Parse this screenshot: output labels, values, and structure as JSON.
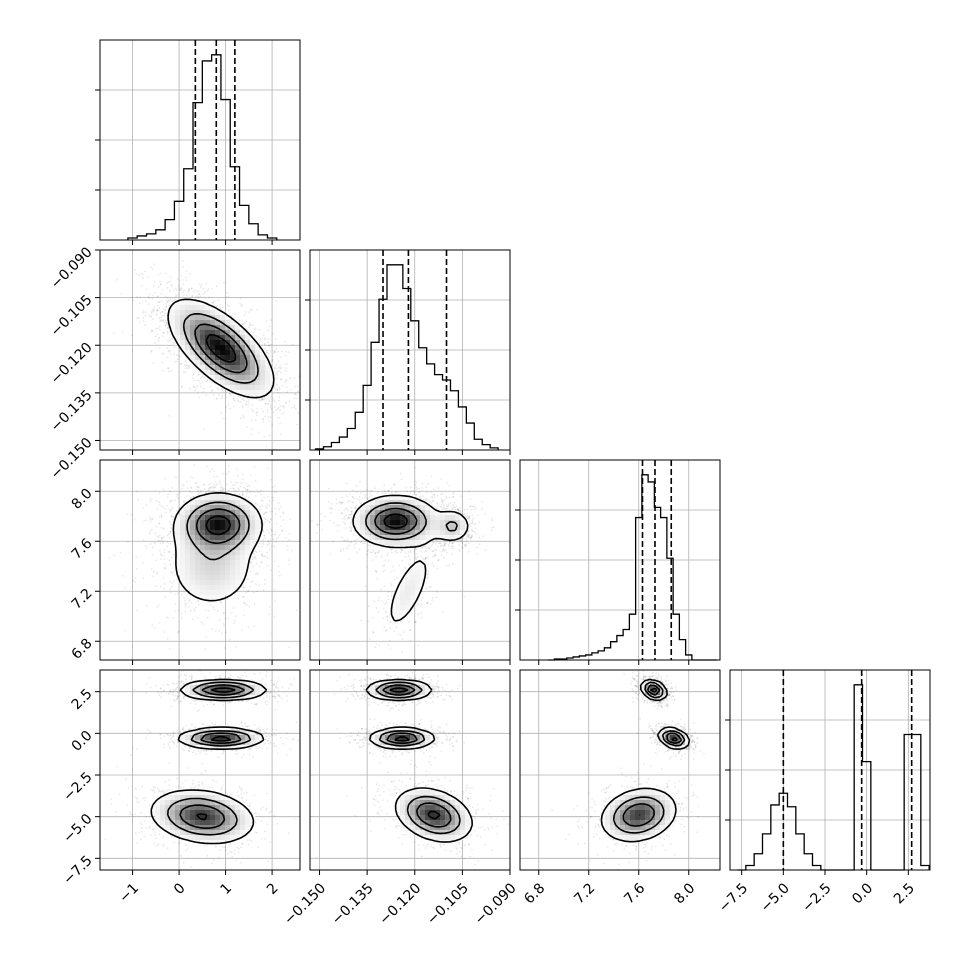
{
  "chart_data": {
    "type": "scatter",
    "title": "",
    "variables": [
      {
        "range": [
          -1.7,
          2.6
        ],
        "ticks": [
          -1,
          0,
          1,
          2
        ],
        "tick_labels": [
          "−1",
          "0",
          "1",
          "2"
        ],
        "hist_x": [
          -1.0,
          -0.8,
          -0.6,
          -0.4,
          -0.2,
          0.0,
          0.2,
          0.4,
          0.6,
          0.8,
          1.0,
          1.2,
          1.4,
          1.6,
          1.8,
          2.0
        ],
        "hist_y": [
          2,
          4,
          6,
          10,
          20,
          38,
          70,
          135,
          176,
          182,
          138,
          72,
          34,
          16,
          5,
          2
        ],
        "quantiles": [
          0.35,
          0.8,
          1.2
        ]
      },
      {
        "range": [
          -0.153,
          -0.09
        ],
        "ticks": [
          -0.15,
          -0.135,
          -0.12,
          -0.105,
          -0.09
        ],
        "tick_labels": [
          "−0.150",
          "−0.135",
          "−0.120",
          "−0.105",
          "−0.090"
        ],
        "hist_x": [
          -0.15,
          -0.1475,
          -0.145,
          -0.1425,
          -0.14,
          -0.1375,
          -0.135,
          -0.1325,
          -0.13,
          -0.1275,
          -0.125,
          -0.1225,
          -0.12,
          -0.1175,
          -0.115,
          -0.1125,
          -0.11,
          -0.1075,
          -0.105,
          -0.1025,
          -0.1,
          -0.0975,
          -0.095
        ],
        "hist_y": [
          1,
          3,
          7,
          12,
          20,
          35,
          60,
          100,
          140,
          172,
          172,
          150,
          120,
          95,
          80,
          70,
          65,
          55,
          40,
          25,
          10,
          5,
          2
        ],
        "quantiles": [
          -0.13,
          -0.122,
          -0.11
        ]
      },
      {
        "range": [
          6.65,
          8.25
        ],
        "ticks": [
          6.8,
          7.2,
          7.6,
          8.0
        ],
        "tick_labels": [
          "6.8",
          "7.2",
          "7.6",
          "8.0"
        ],
        "hist_x": [
          6.9,
          6.95,
          7.0,
          7.05,
          7.1,
          7.15,
          7.2,
          7.25,
          7.3,
          7.35,
          7.4,
          7.45,
          7.5,
          7.55,
          7.6,
          7.65,
          7.7,
          7.75,
          7.8,
          7.85,
          7.9,
          7.95,
          8.0,
          8.05,
          8.1,
          8.15,
          8.2
        ],
        "hist_y": [
          0,
          1,
          1,
          2,
          3,
          4,
          5,
          7,
          9,
          12,
          18,
          24,
          30,
          45,
          140,
          182,
          175,
          150,
          140,
          100,
          45,
          20,
          5,
          0,
          0,
          0,
          0
        ],
        "quantiles": [
          7.63,
          7.73,
          7.86
        ]
      },
      {
        "range": [
          -8.2,
          3.8
        ],
        "ticks": [
          -7.5,
          -5.0,
          -2.5,
          0.0,
          2.5
        ],
        "tick_labels": [
          "−7.5",
          "−5.0",
          "−2.5",
          "0.0",
          "2.5"
        ],
        "hist_x": [
          -7.5,
          -7.0,
          -6.5,
          -6.0,
          -5.5,
          -5.0,
          -4.5,
          -4.0,
          -3.5,
          -3.0,
          -2.5,
          -2.0,
          -1.5,
          -1.0,
          -0.5,
          0.0,
          0.5,
          1.0,
          1.5,
          2.0,
          2.5,
          3.0,
          3.5
        ],
        "hist_y": [
          0,
          5,
          18,
          40,
          72,
          85,
          70,
          40,
          18,
          5,
          0,
          0,
          0,
          0,
          205,
          120,
          0,
          0,
          0,
          0,
          150,
          150,
          5
        ],
        "quantiles": [
          -5.0,
          -0.3,
          2.7
        ]
      }
    ],
    "pairs": [
      {
        "i": 1,
        "j": 0,
        "spread": 0.6,
        "components": [
          {
            "mean": [
              0.9,
              -0.121
            ],
            "sd": [
              0.55,
              0.0075
            ],
            "rho": -0.65,
            "weight": 1.0
          }
        ]
      },
      {
        "i": 2,
        "j": 0,
        "spread": 0.6,
        "components": [
          {
            "mean": [
              0.85,
              7.74
            ],
            "sd": [
              0.45,
              0.12
            ],
            "rho": 0.0,
            "weight": 0.75
          },
          {
            "mean": [
              0.7,
              7.4
            ],
            "sd": [
              0.55,
              0.2
            ],
            "rho": 0.0,
            "weight": 0.25
          }
        ]
      },
      {
        "i": 2,
        "j": 1,
        "spread": 0.6,
        "components": [
          {
            "mean": [
              -0.126,
              7.76
            ],
            "sd": [
              0.0065,
              0.1
            ],
            "rho": 0.0,
            "weight": 0.65
          },
          {
            "mean": [
              -0.108,
              7.72
            ],
            "sd": [
              0.003,
              0.07
            ],
            "rho": 0.0,
            "weight": 0.25
          },
          {
            "mean": [
              -0.122,
              7.2
            ],
            "sd": [
              0.005,
              0.22
            ],
            "rho": 0.7,
            "weight": 0.1
          }
        ]
      },
      {
        "i": 3,
        "j": 0,
        "spread": 0.6,
        "components": [
          {
            "mean": [
              0.95,
              2.6
            ],
            "sd": [
              0.45,
              0.3
            ],
            "rho": 0.0,
            "weight": 0.35
          },
          {
            "mean": [
              0.9,
              -0.3
            ],
            "sd": [
              0.45,
              0.3
            ],
            "rho": 0.0,
            "weight": 0.35
          },
          {
            "mean": [
              0.5,
              -5.0
            ],
            "sd": [
              0.55,
              0.8
            ],
            "rho": -0.2,
            "weight": 0.3
          }
        ]
      },
      {
        "i": 3,
        "j": 1,
        "spread": 0.6,
        "components": [
          {
            "mean": [
              -0.125,
              2.6
            ],
            "sd": [
              0.005,
              0.3
            ],
            "rho": 0.0,
            "weight": 0.35
          },
          {
            "mean": [
              -0.124,
              -0.3
            ],
            "sd": [
              0.005,
              0.3
            ],
            "rho": 0.0,
            "weight": 0.35
          },
          {
            "mean": [
              -0.114,
              -4.9
            ],
            "sd": [
              0.006,
              0.8
            ],
            "rho": -0.3,
            "weight": 0.3
          }
        ]
      },
      {
        "i": 3,
        "j": 2,
        "spread": 0.6,
        "components": [
          {
            "mean": [
              7.72,
              2.6
            ],
            "sd": [
              0.05,
              0.3
            ],
            "rho": -0.3,
            "weight": 0.35
          },
          {
            "mean": [
              7.88,
              -0.3
            ],
            "sd": [
              0.06,
              0.3
            ],
            "rho": -0.3,
            "weight": 0.35
          },
          {
            "mean": [
              7.6,
              -4.9
            ],
            "sd": [
              0.15,
              0.8
            ],
            "rho": 0.2,
            "weight": 0.3
          }
        ]
      }
    ]
  }
}
